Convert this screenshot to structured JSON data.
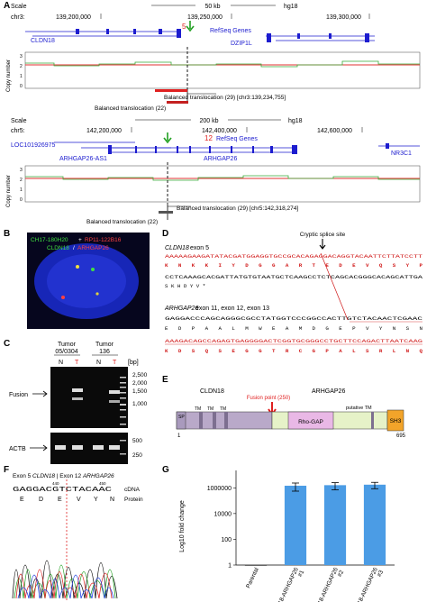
{
  "panels": {
    "A": {
      "letter": "A",
      "top": {
        "scale_label": "Scale",
        "scale_value": "50 kb",
        "assembly": "hg18",
        "chrom": "chr3:",
        "ticks": [
          "139,200,000",
          "139,250,000",
          "139,300,000"
        ],
        "marker_number": "5",
        "refseq_label": "RefSeq Genes",
        "gene_left": "CLDN18",
        "gene_right": "DZIP1L",
        "cn_label": "Copy number",
        "cn_ticks": [
          "3",
          "2",
          "1",
          "0"
        ],
        "translocation_29": "Balanced translocation (29) [chr3:139,234,755]",
        "translocation_22": "Balanced translocation (22)"
      },
      "bottom": {
        "scale_label": "Scale",
        "scale_value": "200 kb",
        "assembly": "hg18",
        "chrom": "chr5:",
        "ticks": [
          "142,200,000",
          "142,400,000",
          "142,600,000"
        ],
        "marker_number": "12",
        "refseq_label": "RefSeq Genes",
        "gene_loc": "LOC101926975",
        "gene_as": "ARHGAP26-AS1",
        "gene_main": "ARHGAP26",
        "gene_nr": "NR3C1",
        "cn_label": "Copy number",
        "cn_ticks": [
          "3",
          "2",
          "1",
          "0"
        ],
        "translocation_29": "Balanced translocation (29) [chr5:142,318,274]",
        "translocation_22": "Balanced translocation (22)"
      }
    },
    "B": {
      "letter": "B",
      "probe_green": "CH17-180H20",
      "probe_sep": "+",
      "probe_red": "RP11-122B16",
      "legend_green": "CLDN18",
      "legend_sep": "/",
      "legend_red": "ARHGAP26"
    },
    "C": {
      "letter": "C",
      "tumor1": "Tumor 05/0304",
      "tumor1_l1": "Tumor",
      "tumor1_l2": "05/0304",
      "tumor2": "Tumor 136",
      "tumor2_l1": "Tumor",
      "tumor2_l2": "136",
      "lane_N": "N",
      "lane_T": "T",
      "bp_label": "[bp]",
      "ladder": [
        "2,500",
        "2,000",
        "1,500",
        "1,000",
        "500",
        "250"
      ],
      "fusion_label": "Fusion",
      "actb_label": "ACTB"
    },
    "D": {
      "letter": "D",
      "cryptic": "Cryptic splice site",
      "exon5_gene": "CLDN18",
      "exon5_rest": " exon 5",
      "seq1": "AAAAAGAAGATATACGATGGAGGTGCCGCACAGAGGACAGGTACAATTCTTATCCTT",
      "aa1": "K  N  K  K  I  Y  D  G  G  A  R  T  E  D  E  V  Q  S  Y  P",
      "seq2": "CCTCAAAGCACGATTATGTGTAATGCTCAAGCCTCTCAGCACGGGCACAGCATTGA",
      "aa2": "S  K  H  D  Y  V  *",
      "arh_gene": "ARHGAP26",
      "arh_rest": " exon 11, exon 12, exon 13",
      "seq3": "GAGGACCCAGCAGGGCGCCTATGGTCCCGGCCACTTGTCTACAACTCGAAC",
      "aa3": "E  D  P  A  A  L  M  W  E  A  M  D  G  E  P  V  Y  N  S  N",
      "seq4": "AAAGACAGCCAGAGTGAGGGGACTCGGTGCGGGCCTGCTTCCAGACTTAATCAAG",
      "aa4": "K  D  S  Q  S  E  G  G  T  R  C  G  P  A  L  S  R  L  N  Q"
    },
    "E": {
      "letter": "E",
      "left_gene": "CLDN18",
      "right_gene": "ARHGAP26",
      "fusion_point": "Fusion point (250)",
      "putative": "putative TM",
      "domains": [
        "SP",
        "TM",
        "TM",
        "TM",
        "Rho-GAP",
        "SH3"
      ],
      "start": "1",
      "end": "695",
      "colors": {
        "cldn": "#b9a9c9",
        "rhogap": "#e9b8e6",
        "sh3": "#f2a42a",
        "tail": "#e6f2c8"
      }
    },
    "F": {
      "letter": "F",
      "title_exon5": "Exon 5 ",
      "title_cldn": "CLDN18",
      "title_mid": " | Exon 12 ",
      "title_arh": "ARHGAP26",
      "num_left": "440",
      "num_right": "450",
      "cdna_seq": "GAGGACGTCTACAAC",
      "cdna_label": "cDNA",
      "protein_seq": [
        "E",
        "D",
        "E",
        "V",
        "Y",
        "N"
      ],
      "protein_label": "Protein"
    },
    "G": {
      "letter": "G",
      "chart_data": {
        "type": "bar",
        "categories": [
          "Parental",
          "CLDN18-ARHGAP26 #1",
          "CLDN18-ARHGAP26 #2",
          "CLDN18-ARHGAP26 #3"
        ],
        "values": [
          1,
          1450000,
          1600000,
          1750000
        ],
        "errors": [
          0,
          900000,
          900000,
          900000
        ],
        "ylabel": "Log10 fold change",
        "yscale": "log",
        "ylim": [
          1,
          10000000
        ],
        "yticks": [
          "1000000",
          "10000",
          "100",
          "1"
        ],
        "bar_color": "#4b9ce5"
      }
    }
  }
}
